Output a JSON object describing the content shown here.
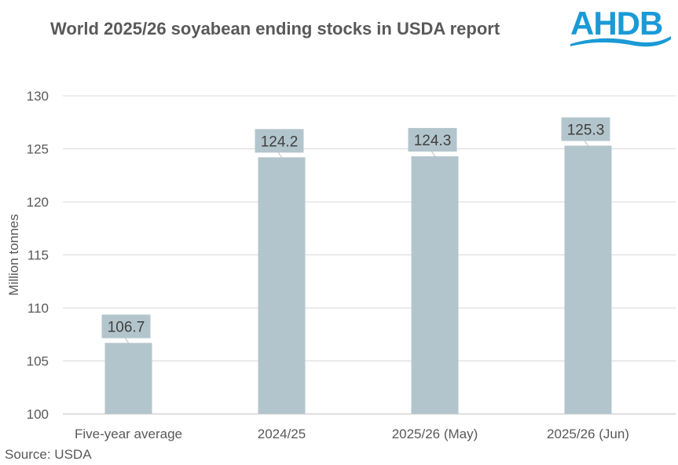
{
  "logo": {
    "text": "AHDB",
    "color": "#1a9ad6"
  },
  "source": "Source: USDA",
  "chart_data": {
    "type": "bar",
    "title": "World 2025/26 soyabean ending stocks in USDA report",
    "xlabel": "",
    "ylabel": "Million tonnes",
    "categories": [
      "Five-year average",
      "2024/25",
      "2025/26 (May)",
      "2025/26 (Jun)"
    ],
    "values": [
      106.7,
      124.2,
      124.3,
      125.3
    ],
    "data_labels": [
      "106.7",
      "124.2",
      "124.3",
      "125.3"
    ],
    "ylim": [
      100,
      130
    ],
    "yticks": [
      100,
      105,
      110,
      115,
      120,
      125,
      130
    ],
    "grid": true,
    "legend": "none",
    "bar_color": "#b3c5cc"
  }
}
